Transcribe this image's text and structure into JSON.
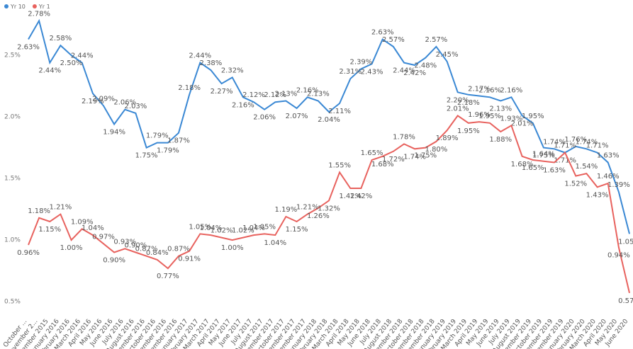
{
  "chart_data": {
    "type": "line",
    "categories": [
      "October ...",
      "November 2...",
      "December 2015",
      "January 2016",
      "February 2016",
      "March 2016",
      "April 2016",
      "May 2016",
      "June 2016",
      "July 2016",
      "August 2016",
      "September 2016",
      "October 2016",
      "November 2016",
      "December 2016",
      "January 2017",
      "February 2017",
      "March 2017",
      "April 2017",
      "May 2017",
      "June 2017",
      "July 2017",
      "August 2017",
      "September 2017",
      "October 2017",
      "November 2017",
      "December 2017",
      "January 2018",
      "February 2018",
      "March 2018",
      "April 2018",
      "May 2018",
      "June 2018",
      "July 2018",
      "August 2018",
      "September 2018",
      "October 2018",
      "November 2018",
      "December 2018",
      "January 2019",
      "February 2019",
      "March 2019",
      "April 2019",
      "May 2019",
      "June 2019",
      "July 2019",
      "August 2019",
      "September 2019",
      "October 2019",
      "November 2019",
      "December 2019",
      "January 2020",
      "February 2020",
      "March 2020",
      "April 2020",
      "May 2020",
      "June 2020"
    ],
    "series": [
      {
        "name": "Yr 10",
        "color": "#3a88d4",
        "values": [
          2.63,
          2.78,
          2.44,
          2.58,
          2.5,
          2.44,
          2.19,
          2.09,
          1.94,
          2.06,
          2.03,
          1.75,
          1.79,
          1.79,
          1.87,
          2.18,
          2.44,
          2.38,
          2.27,
          2.32,
          2.16,
          2.12,
          2.06,
          2.12,
          2.13,
          2.07,
          2.16,
          2.13,
          2.04,
          2.11,
          2.31,
          2.39,
          2.43,
          2.63,
          2.57,
          2.44,
          2.42,
          2.48,
          2.57,
          2.45,
          2.2,
          2.18,
          2.17,
          2.16,
          2.13,
          2.16,
          2.01,
          1.95,
          1.75,
          1.74,
          1.71,
          1.76,
          1.74,
          1.71,
          1.63,
          1.39,
          1.05
        ],
        "value_labels": [
          "2.63%",
          "2.78%",
          "2.44%",
          "2.58%",
          "2.50%",
          "2.44%",
          "2.19%",
          "2.09%",
          "1.94%",
          "2.06%",
          "2.03%",
          "1.75%",
          "1.79%",
          "1.79%",
          "1.87%",
          "2.18%",
          "2.44%",
          "2.38%",
          "2.27%",
          "2.32%",
          "2.16%",
          "2.12%",
          "2.06%",
          "2.12%",
          "2.13%",
          "2.07%",
          "2.16%",
          "2.13%",
          "2.04%",
          "2.11%",
          "2.31%",
          "2.39%",
          "2.43%",
          "2.63%",
          "2.57%",
          "2.44%",
          "2.42%",
          "2.48%",
          "2.57%",
          "2.45%",
          "2.20%",
          "2.18%",
          "2.17%",
          "2.16%",
          "2.13%",
          "2.16%",
          "2.01%",
          "1.95%",
          "1.75%",
          "1.74%",
          "1.71%",
          "1.76%",
          "1.74%",
          "1.71%",
          "1.63%",
          "1.39%",
          "1.05%"
        ]
      },
      {
        "name": "Yr 1",
        "color": "#e8625e",
        "values": [
          0.96,
          1.18,
          1.15,
          1.21,
          1.0,
          1.09,
          1.04,
          0.97,
          0.9,
          0.93,
          0.9,
          0.87,
          0.84,
          0.77,
          0.87,
          0.91,
          1.05,
          1.04,
          1.02,
          1.0,
          1.02,
          1.04,
          1.05,
          1.04,
          1.19,
          1.15,
          1.21,
          1.26,
          1.32,
          1.55,
          1.42,
          1.42,
          1.65,
          1.68,
          1.72,
          1.78,
          1.74,
          1.75,
          1.8,
          1.89,
          2.01,
          1.95,
          1.96,
          1.95,
          1.88,
          1.93,
          1.68,
          1.65,
          1.64,
          1.63,
          1.71,
          1.52,
          1.54,
          1.43,
          1.46,
          0.94,
          0.57
        ],
        "value_labels": [
          "0.96%",
          "1.18%",
          "1.15%",
          "1.21%",
          "1.00%",
          "1.09%",
          "1.04%",
          "0.97%",
          "0.90%",
          "0.93%",
          "0.90%",
          "0.87%",
          "0.84%",
          "0.77%",
          "0.87%",
          "0.91%",
          "1.05%",
          "1.04%",
          "1.02%",
          "1.00%",
          "1.02%",
          "1.04%",
          "1.05%",
          "1.04%",
          "1.19%",
          "1.15%",
          "1.21%",
          "1.26%",
          "1.32%",
          "1.55%",
          "1.42%",
          "1.42%",
          "1.65%",
          "1.68%",
          "1.72%",
          "1.78%",
          "1.74%",
          "1.75%",
          "1.80%",
          "1.89%",
          "2.01%",
          "1.95%",
          "1.96%",
          "1.95%",
          "1.88%",
          "1.93%",
          "1.68%",
          "1.65%",
          "1.64%",
          "1.63%",
          "1.71%",
          "1.52%",
          "1.54%",
          "1.43%",
          "1.46%",
          "0.94%",
          "0.57%"
        ]
      }
    ],
    "ylim": [
      0.42,
      2.88
    ],
    "yticks": [
      {
        "value": 0.5,
        "label": "0.5%"
      },
      {
        "value": 1.0,
        "label": "1.0%"
      },
      {
        "value": 1.5,
        "label": "1.5%"
      },
      {
        "value": 2.0,
        "label": "2.0%"
      },
      {
        "value": 2.5,
        "label": "2.5%"
      }
    ],
    "legend": "top-left"
  }
}
